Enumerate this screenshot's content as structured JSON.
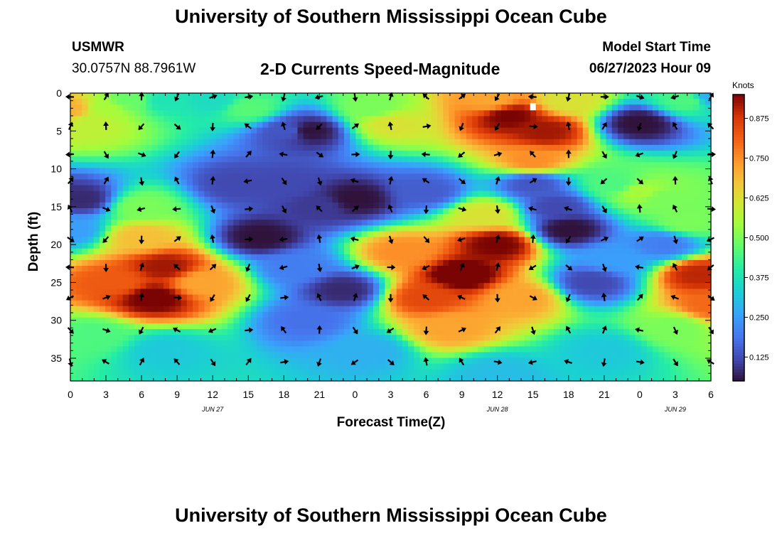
{
  "page": {
    "title": "University of Southern Mississippi Ocean Cube",
    "title_repeat": "University of Southern Mississippi Ocean Cube",
    "station": "USMWR",
    "coordinates": "30.0757N  88.7961W",
    "model_start_label": "Model Start Time",
    "model_start_value": "06/27/2023 Hour 09",
    "subtitle": "2-D Currents Speed-Magnitude"
  },
  "chart_data": {
    "type": "heatmap",
    "title": "2-D Currents Speed-Magnitude",
    "xlabel": "Forecast Time(Z)",
    "ylabel": "Depth (ft)",
    "x_tick_labels": [
      "0",
      "3",
      "6",
      "9",
      "12",
      "15",
      "18",
      "21",
      "0",
      "3",
      "6",
      "9",
      "12",
      "15",
      "18",
      "21",
      "0",
      "3",
      "6"
    ],
    "x_range_hours": [
      0,
      54
    ],
    "date_labels": [
      {
        "text": "JUN 27",
        "hour": 12
      },
      {
        "text": "JUN 28",
        "hour": 36
      },
      {
        "text": "JUN 29",
        "hour": 51
      }
    ],
    "y_ticks": [
      0,
      5,
      10,
      15,
      20,
      25,
      30,
      35
    ],
    "y_range_ft": [
      0,
      38
    ],
    "colorbar": {
      "label": "Knots",
      "ticks": [
        "0.875",
        "0.750",
        "0.625",
        "0.500",
        "0.375",
        "0.250",
        "0.125"
      ],
      "tick_values": [
        0.875,
        0.75,
        0.625,
        0.5,
        0.375,
        0.25,
        0.125
      ],
      "range": [
        0.05,
        0.95
      ]
    },
    "speed_hotspots_knots": [
      {
        "t": 0,
        "d": 2,
        "v": 0.7
      },
      {
        "t": 2,
        "d": 4,
        "v": 0.58
      },
      {
        "t": 3,
        "d": 2,
        "v": 0.55
      },
      {
        "t": 5,
        "d": 1,
        "v": 0.48
      },
      {
        "t": 8,
        "d": 1,
        "v": 0.38
      },
      {
        "t": 15,
        "d": 2,
        "v": 0.46
      },
      {
        "t": 12,
        "d": 1,
        "v": 0.36
      },
      {
        "t": 20,
        "d": 5,
        "v": 0.05
      },
      {
        "t": 18.5,
        "d": 5,
        "v": 0.14
      },
      {
        "t": 27,
        "d": 4,
        "v": 0.62
      },
      {
        "t": 25.5,
        "d": 2,
        "v": 0.5
      },
      {
        "t": 37,
        "d": 3,
        "v": 0.95
      },
      {
        "t": 40,
        "d": 5,
        "v": 0.92
      },
      {
        "t": 39,
        "d": 9,
        "v": 0.75
      },
      {
        "t": 35.5,
        "d": 1,
        "v": 0.72
      },
      {
        "t": 42,
        "d": 1,
        "v": 0.62
      },
      {
        "t": 48,
        "d": 4,
        "v": 0.05
      },
      {
        "t": 52,
        "d": 1,
        "v": 0.45
      },
      {
        "t": 54,
        "d": 0.5,
        "v": 0.28
      },
      {
        "t": 1,
        "d": 14,
        "v": 0.08
      },
      {
        "t": 0,
        "d": 18,
        "v": 0.25
      },
      {
        "t": 7,
        "d": 27,
        "v": 0.96
      },
      {
        "t": 8,
        "d": 23,
        "v": 0.92
      },
      {
        "t": 4,
        "d": 25,
        "v": 0.82
      },
      {
        "t": 11,
        "d": 25,
        "v": 0.72
      },
      {
        "t": 6,
        "d": 19,
        "v": 0.68
      },
      {
        "t": 6,
        "d": 15,
        "v": 0.5
      },
      {
        "t": 2,
        "d": 32,
        "v": 0.45
      },
      {
        "t": 8,
        "d": 34,
        "v": 0.32
      },
      {
        "t": 14,
        "d": 12,
        "v": 0.12
      },
      {
        "t": 16,
        "d": 19,
        "v": 0.05
      },
      {
        "t": 19,
        "d": 23,
        "v": 0.2
      },
      {
        "t": 20,
        "d": 30,
        "v": 0.18
      },
      {
        "t": 23,
        "d": 26,
        "v": 0.08
      },
      {
        "t": 24,
        "d": 14,
        "v": 0.05
      },
      {
        "t": 18,
        "d": 12,
        "v": 0.12
      },
      {
        "t": 21,
        "d": 15,
        "v": 0.1
      },
      {
        "t": 30,
        "d": 13,
        "v": 0.15
      },
      {
        "t": 33,
        "d": 24,
        "v": 0.98
      },
      {
        "t": 36,
        "d": 20,
        "v": 0.95
      },
      {
        "t": 30,
        "d": 27,
        "v": 0.85
      },
      {
        "t": 32,
        "d": 31,
        "v": 0.72
      },
      {
        "t": 38,
        "d": 27,
        "v": 0.72
      },
      {
        "t": 28,
        "d": 21,
        "v": 0.75
      },
      {
        "t": 35,
        "d": 16,
        "v": 0.62
      },
      {
        "t": 25,
        "d": 34,
        "v": 0.28
      },
      {
        "t": 39,
        "d": 12,
        "v": 0.14
      },
      {
        "t": 42,
        "d": 18,
        "v": 0.05
      },
      {
        "t": 41,
        "d": 15,
        "v": 0.12
      },
      {
        "t": 44,
        "d": 25,
        "v": 0.12
      },
      {
        "t": 46,
        "d": 22,
        "v": 0.25
      },
      {
        "t": 48,
        "d": 13,
        "v": 0.55
      },
      {
        "t": 50,
        "d": 14,
        "v": 0.5
      },
      {
        "t": 46,
        "d": 12,
        "v": 0.45
      },
      {
        "t": 53,
        "d": 24,
        "v": 0.9
      },
      {
        "t": 54,
        "d": 28,
        "v": 0.8
      },
      {
        "t": 51,
        "d": 31,
        "v": 0.5
      },
      {
        "t": 52,
        "d": 17,
        "v": 0.5
      },
      {
        "t": 50,
        "d": 20,
        "v": 0.2
      },
      {
        "t": 45,
        "d": 34,
        "v": 0.32
      },
      {
        "t": 36,
        "d": 37,
        "v": 0.3
      }
    ],
    "arrow_depths_ft": [
      0.5,
      4.4,
      8.1,
      11.6,
      15.3,
      19.3,
      23.0,
      27.0,
      31.3,
      35.5
    ],
    "arrow_time_step_hours": 3,
    "marker": {
      "hour": 39,
      "depth_ft": 1.8
    }
  }
}
